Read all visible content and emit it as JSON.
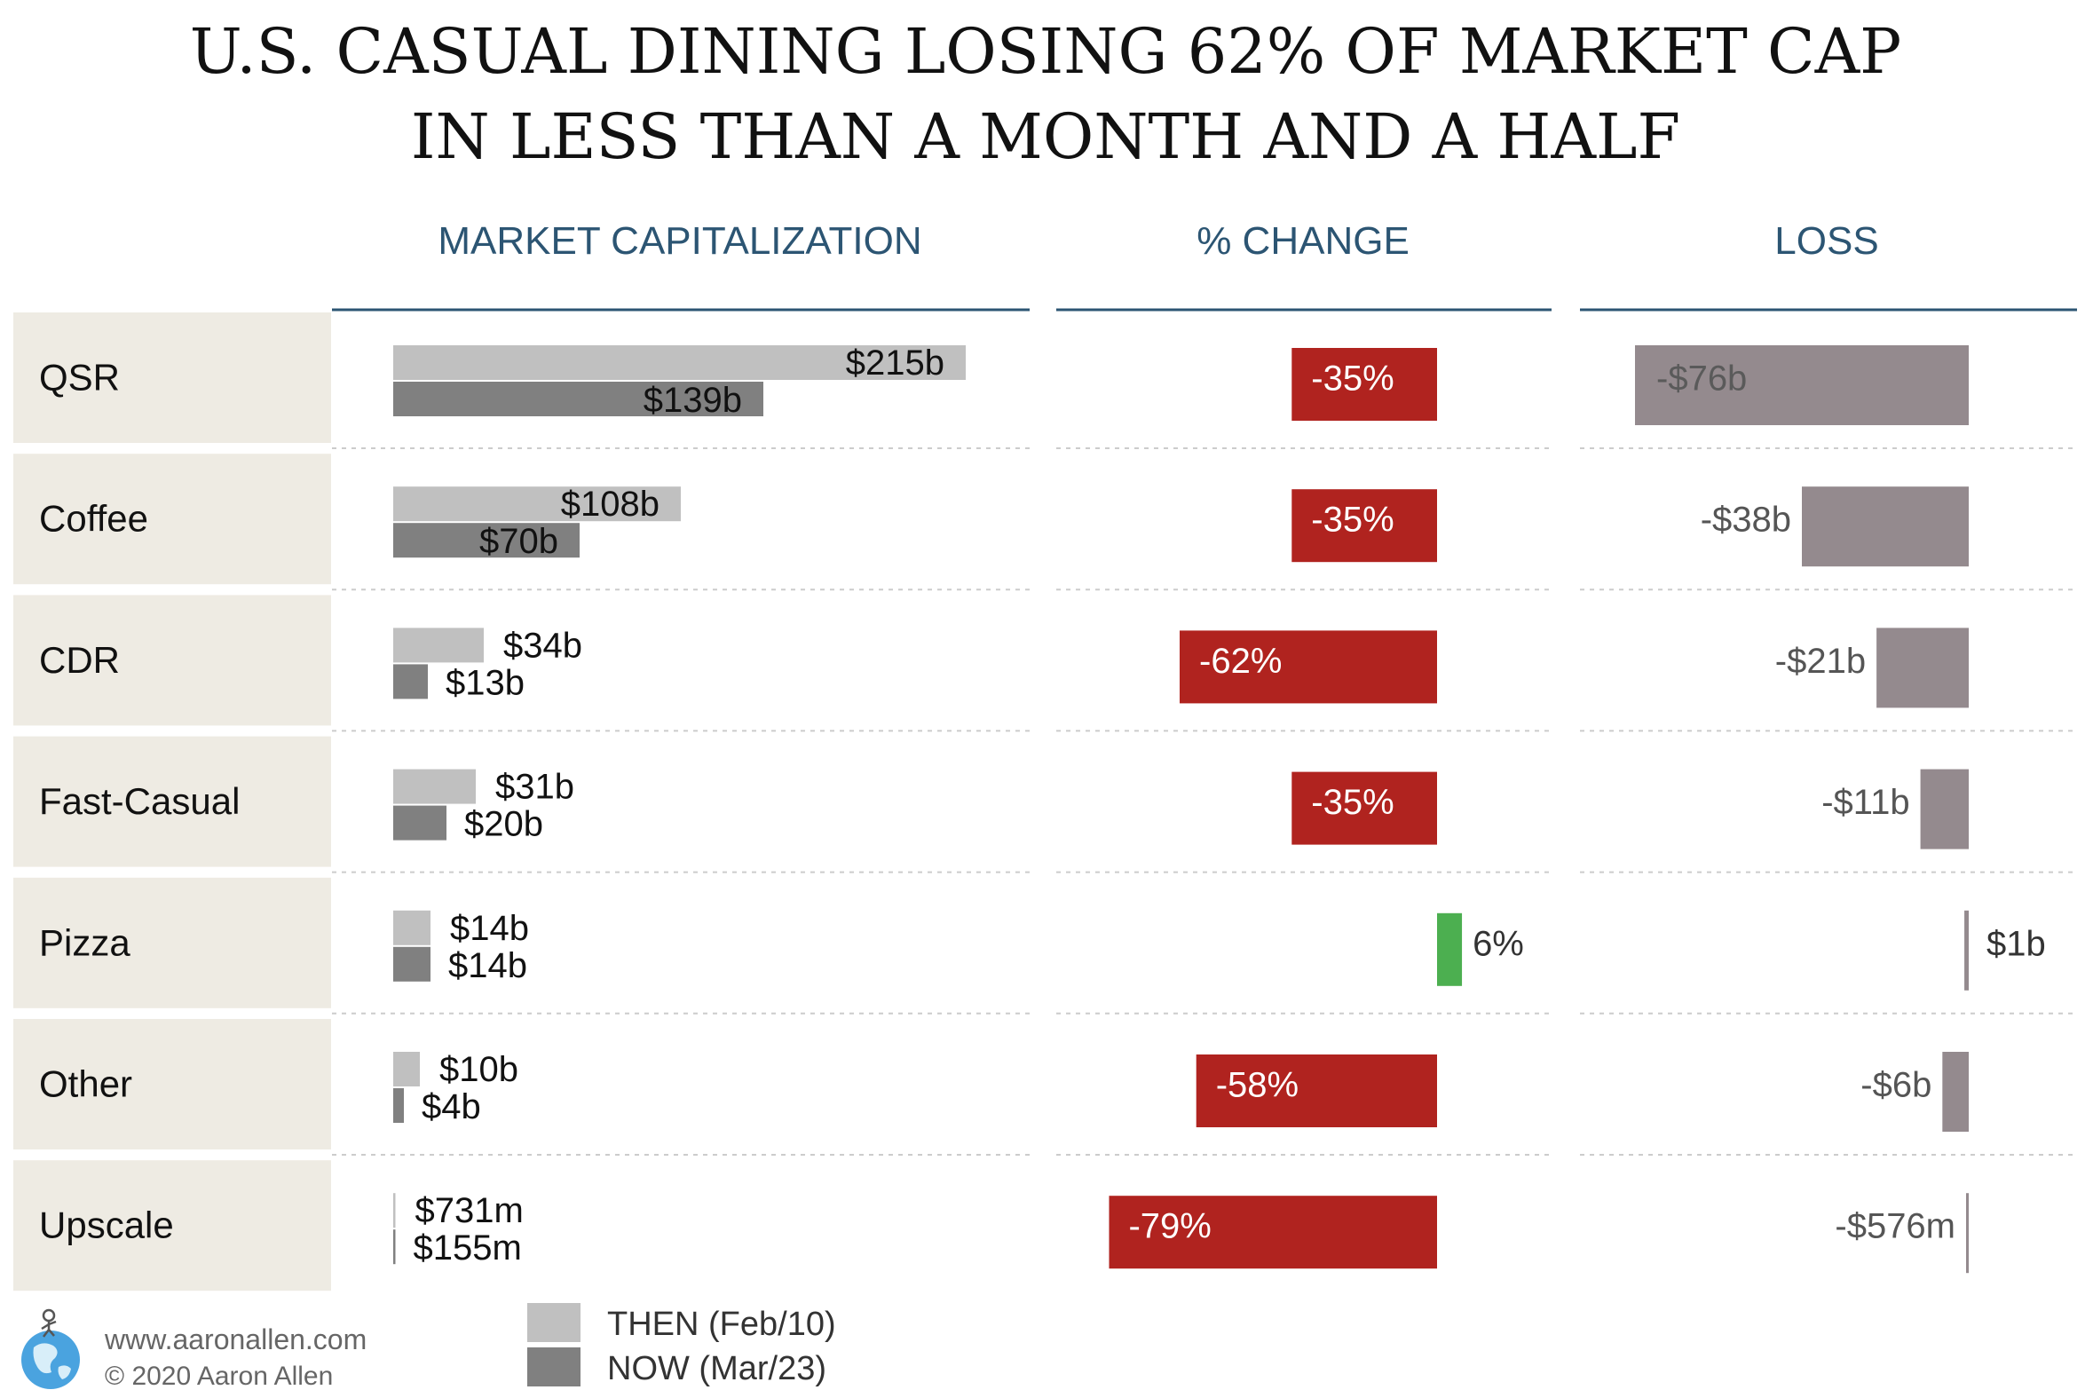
{
  "title_line1": "U.S. CASUAL DINING LOSING 62% OF MARKET CAP",
  "title_line2": "IN LESS THAN A MONTH AND A HALF",
  "columns": {
    "market_cap": "MARKET CAPITALIZATION",
    "pct_change": "% CHANGE",
    "loss": "LOSS"
  },
  "legend": {
    "then": "THEN (Feb/10)",
    "now": "NOW (Mar/23)"
  },
  "footer": {
    "website": "www.aaronallen.com",
    "copyright": "© 2020 Aaron Allen"
  },
  "colors": {
    "then": "#c0c0c0",
    "now": "#808080",
    "negative_change": "#b0231f",
    "positive_change": "#4caf50",
    "loss": "#948a8e",
    "category_bg": "#eeebe3",
    "header_rule": "#2c5573"
  },
  "chart_data": {
    "type": "bar",
    "units": "billion USD",
    "categories": [
      "QSR",
      "Coffee",
      "CDR",
      "Fast-Casual",
      "Pizza",
      "Other",
      "Upscale"
    ],
    "series": [
      {
        "name": "THEN (Feb/10)",
        "values": [
          215,
          108,
          34,
          31,
          14,
          10,
          0.731
        ]
      },
      {
        "name": "NOW (Mar/23)",
        "values": [
          139,
          70,
          13,
          20,
          14,
          4,
          0.155
        ]
      }
    ],
    "pct_change": [
      -35,
      -35,
      -62,
      -35,
      6,
      -58,
      -79
    ],
    "loss": [
      -76,
      -38,
      -21,
      -11,
      1,
      -6,
      -0.576
    ],
    "labels": {
      "then": [
        "$215b",
        "$108b",
        "$34b",
        "$31b",
        "$14b",
        "$10b",
        "$731m"
      ],
      "now": [
        "$139b",
        "$70b",
        "$13b",
        "$20b",
        "$14b",
        "$4b",
        "$155m"
      ],
      "pct": [
        "-35%",
        "-35%",
        "-62%",
        "-35%",
        "6%",
        "-58%",
        "-79%"
      ],
      "loss": [
        "-$76b",
        "-$38b",
        "-$21b",
        "-$11b",
        "$1b",
        "-$6b",
        "-$576m"
      ]
    }
  }
}
